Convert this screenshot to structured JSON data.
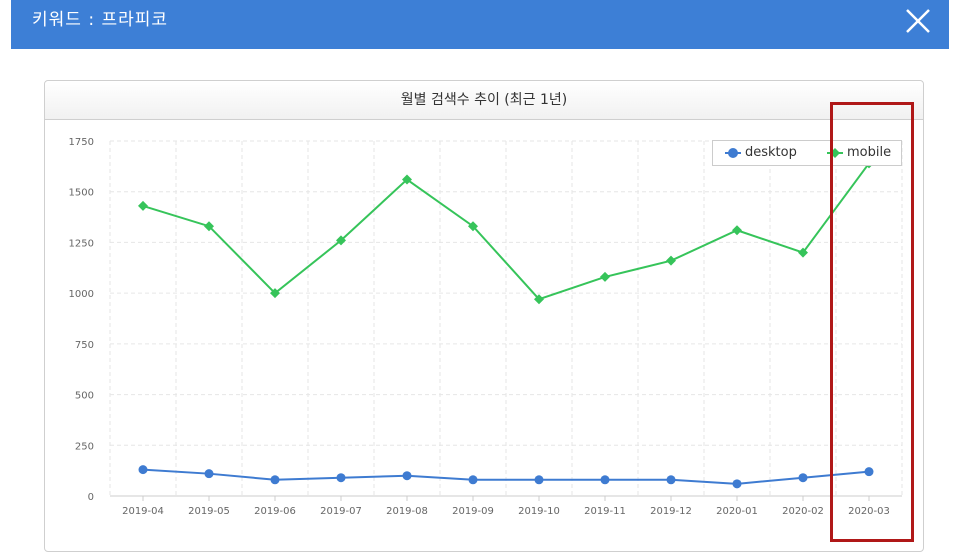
{
  "header": {
    "title": "키워드 : 프라피코",
    "close_icon": "close-icon"
  },
  "panel": {
    "title": "월별 검색수 추이 (최근 1년)"
  },
  "colors": {
    "header_bg": "#3d7fd6",
    "desktop": "#3e7bd1",
    "mobile": "#36c45a",
    "highlight": "#b01818"
  },
  "legend": {
    "position": "top-right",
    "items": [
      {
        "label": "desktop",
        "marker": "circle"
      },
      {
        "label": "mobile",
        "marker": "diamond"
      }
    ]
  },
  "chart_data": {
    "type": "line",
    "title": "월별 검색수 추이 (최근 1년)",
    "categories": [
      "2019-04",
      "2019-05",
      "2019-06",
      "2019-07",
      "2019-08",
      "2019-09",
      "2019-10",
      "2019-11",
      "2019-12",
      "2020-01",
      "2020-02",
      "2020-03"
    ],
    "yticks": [
      0,
      250,
      500,
      750,
      1000,
      1250,
      1500,
      1750
    ],
    "ylim": [
      0,
      1750
    ],
    "grid": true,
    "series": [
      {
        "name": "desktop",
        "values": [
          130,
          110,
          80,
          90,
          100,
          80,
          80,
          80,
          80,
          60,
          90,
          120
        ]
      },
      {
        "name": "mobile",
        "values": [
          1430,
          1330,
          1000,
          1260,
          1560,
          1330,
          970,
          1080,
          1160,
          1310,
          1200,
          1640
        ]
      }
    ]
  }
}
